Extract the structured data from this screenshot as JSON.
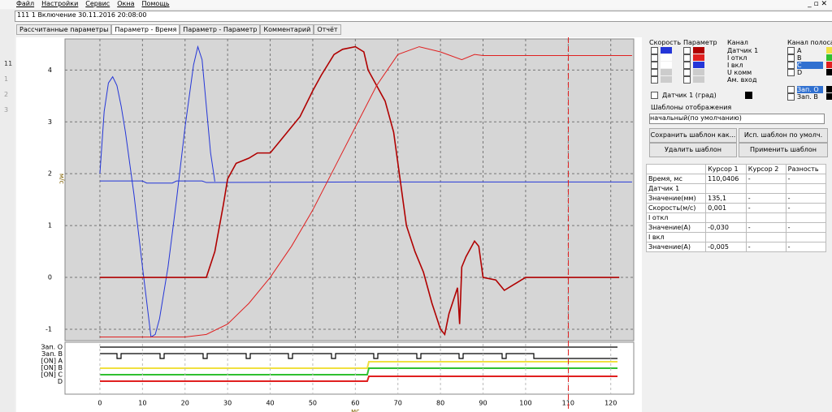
{
  "window_title": "111 1 Включение 30.11.2016 20:08:00",
  "menu": [
    "Файл",
    "Настройки",
    "Сервис",
    "Окна",
    "Помощь"
  ],
  "tabs": [
    "Рассчитанные параметры",
    "Параметр - Время",
    "Параметр - Параметр",
    "Комментарий",
    "Отчёт"
  ],
  "toolbar_numbers": [
    "11",
    "1",
    "2",
    "3"
  ],
  "chart_data": {
    "type": "line",
    "y_label": "м/с",
    "x_label": "мс",
    "xlim": [
      -8.2,
      125.4
    ],
    "ylim": [
      -1.22,
      4.6
    ],
    "xticks": [
      0,
      10,
      20,
      30,
      40,
      50,
      60,
      70,
      80,
      90,
      100,
      110,
      120
    ],
    "yticks": [
      -1,
      0,
      1,
      2,
      3,
      4
    ],
    "grid": true,
    "cursor": 110.0406,
    "cursor_color": "#e02020",
    "series": [
      {
        "color": "#2436d8",
        "x": [
          0,
          1,
          2,
          3,
          4,
          5,
          6,
          8,
          10,
          12,
          13,
          14,
          16,
          18,
          20,
          22,
          23,
          24,
          25,
          26,
          27
        ],
        "values": [
          2.0,
          3.2,
          3.75,
          3.87,
          3.7,
          3.3,
          2.8,
          1.6,
          0.2,
          -1.15,
          -1.1,
          -0.8,
          0.2,
          1.5,
          2.9,
          4.1,
          4.45,
          4.2,
          3.3,
          2.4,
          1.85
        ]
      },
      {
        "color": "#2436d8",
        "x": [
          0,
          10,
          11,
          17,
          18,
          24,
          25,
          60,
          120,
          125
        ],
        "values": [
          1.86,
          1.86,
          1.82,
          1.82,
          1.86,
          1.86,
          1.83,
          1.84,
          1.84,
          1.84
        ]
      },
      {
        "color": "#b00000",
        "x": [
          0,
          25,
          27,
          29,
          30,
          32,
          35,
          37,
          40,
          42,
          45,
          47,
          50,
          52,
          55,
          57,
          60,
          62,
          63,
          65,
          67,
          69,
          70,
          72,
          74,
          76,
          78,
          80,
          81,
          82,
          84,
          84.5,
          85,
          86,
          88,
          89,
          90,
          93,
          95,
          97,
          99,
          100,
          122
        ],
        "values": [
          0,
          0,
          0.5,
          1.4,
          1.9,
          2.2,
          2.3,
          2.4,
          2.4,
          2.6,
          2.9,
          3.1,
          3.6,
          3.9,
          4.3,
          4.4,
          4.45,
          4.35,
          4.0,
          3.7,
          3.4,
          2.8,
          2.2,
          1.0,
          0.5,
          0.1,
          -0.5,
          -1.0,
          -1.1,
          -0.7,
          -0.2,
          -0.9,
          0.2,
          0.4,
          0.7,
          0.6,
          0.0,
          -0.05,
          -0.25,
          -0.15,
          -0.05,
          0,
          0
        ]
      },
      {
        "color": "#e02020",
        "x": [
          0,
          20,
          25,
          30,
          35,
          40,
          45,
          50,
          55,
          60,
          65,
          70,
          75,
          80,
          85,
          88,
          90,
          125
        ],
        "values": [
          -1.15,
          -1.15,
          -1.1,
          -0.9,
          -0.5,
          0,
          0.6,
          1.3,
          2.1,
          2.9,
          3.7,
          4.3,
          4.45,
          4.35,
          4.2,
          4.3,
          4.28,
          4.28
        ]
      }
    ]
  },
  "digital": {
    "channels": [
      "Зап. О",
      "Зап. В",
      "[ON] A",
      "[ON] B",
      "[ON] C",
      "D"
    ]
  },
  "side": {
    "speed": "Скорость",
    "param": "Параметр",
    "channel": "Канал",
    "strip": "Канал полоса",
    "channels": [
      "Датчик 1",
      "I откл",
      "I вкл",
      "U комм",
      "Ам. вход"
    ],
    "deg": "Датчик 1 (град)",
    "strips": [
      "A",
      "B",
      "C",
      "D",
      "Зап. О",
      "Зап. В"
    ],
    "templates": "Шаблоны отображения",
    "template": "начальный(по умолчанию)",
    "buttons": [
      "Сохранить шаблон как...",
      "Исп. шаблон по умолч.",
      "Удалить шаблон",
      "Применить шаблон"
    ]
  },
  "table": {
    "header": [
      "Курсор 1",
      "Курсор 2",
      "Разность"
    ],
    "rows": [
      [
        "Время, мс",
        "110,0406",
        "-",
        "-"
      ],
      [
        "Датчик 1"
      ],
      [
        "Значение(мм)",
        "135,1",
        "-",
        "-"
      ],
      [
        "Скорость(м/с)",
        "0,001",
        "-",
        "-"
      ],
      [
        "I откл"
      ],
      [
        "Значение(А)",
        "-0,030",
        "-",
        "-"
      ],
      [
        "I вкл"
      ],
      [
        "Значение(А)",
        "-0,005",
        "-",
        "-"
      ]
    ]
  }
}
